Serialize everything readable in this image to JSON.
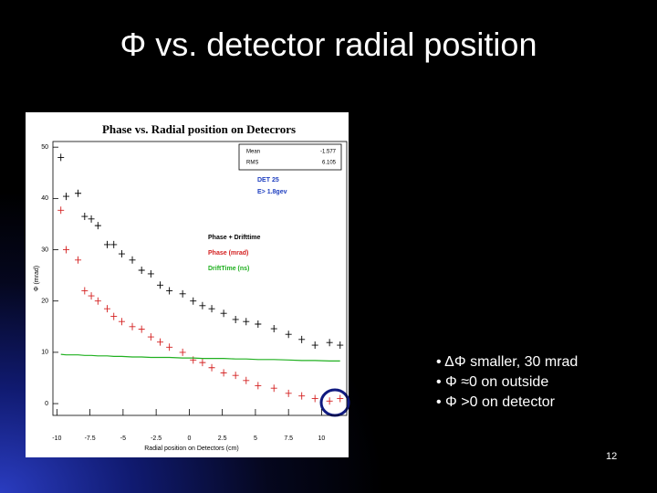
{
  "slide": {
    "title": "Φ vs. detector radial position",
    "bullets": [
      "• ΔΦ smaller, 30 mrad",
      "• Φ ≈0 on outside",
      "• Φ >0 on detector"
    ],
    "page_number": "12"
  },
  "chart_data": {
    "type": "scatter",
    "title": "Phase vs. Radial position on Detecrors",
    "x_label": "Radial position on Detectors (cm)",
    "y_label": "Φ (mrad)",
    "stats": {
      "labels": [
        "Mean",
        "RMS"
      ],
      "values": [
        -1.577,
        6.105
      ]
    },
    "annotations": [
      "DET 25",
      "E> 1.8gev"
    ],
    "xlim": [
      -10.3,
      11.9
    ],
    "ylim": [
      -2.3,
      51.1
    ],
    "xticks": [
      -10,
      -7.5,
      -5,
      -2.5,
      0,
      2.5,
      5,
      7.5,
      10
    ],
    "yticks": [
      0,
      10,
      20,
      30,
      40,
      50
    ],
    "series": [
      {
        "name": "Phase + Drifttime",
        "color": "#000000",
        "style": "cross",
        "x": [
          -9.7,
          -9.3,
          -8.4,
          -7.9,
          -7.4,
          -6.9,
          -6.2,
          -5.7,
          -5.1,
          -4.3,
          -3.6,
          -2.9,
          -2.2,
          -1.5,
          -0.5,
          0.3,
          1.0,
          1.7,
          2.6,
          3.5,
          4.3,
          5.2,
          6.4,
          7.5,
          8.5,
          9.5,
          10.6,
          11.4
        ],
        "values": [
          48,
          40.4,
          41,
          36.5,
          36,
          34.7,
          31,
          31,
          29.2,
          28,
          26,
          25.3,
          23.1,
          22,
          21.4,
          20,
          19.1,
          18.5,
          17.6,
          16.4,
          16,
          15.5,
          14.6,
          13.5,
          12.5,
          11.4,
          11.9,
          11.4
        ]
      },
      {
        "name": "Phase (mrad)",
        "color": "#d42020",
        "style": "cross",
        "x": [
          -9.7,
          -9.3,
          -8.4,
          -7.9,
          -7.4,
          -6.9,
          -6.2,
          -5.7,
          -5.1,
          -4.3,
          -3.6,
          -2.9,
          -2.2,
          -1.5,
          -0.5,
          0.3,
          1.0,
          1.7,
          2.6,
          3.5,
          4.3,
          5.2,
          6.4,
          7.5,
          8.5,
          9.5,
          10.6,
          11.4
        ],
        "values": [
          37.7,
          30,
          28,
          22,
          21,
          20,
          18.5,
          17,
          16,
          15,
          14.5,
          13,
          12,
          11,
          10,
          8.5,
          8,
          7,
          6,
          5.5,
          4.5,
          3.5,
          3,
          2,
          1.5,
          1,
          0.5,
          1
        ]
      },
      {
        "name": "DriftTime (ns)",
        "color": "#20b020",
        "style": "line",
        "x": [
          -9.7,
          -9.3,
          -8.4,
          -7.9,
          -7.4,
          -6.9,
          -6.2,
          -5.7,
          -5.1,
          -4.3,
          -3.6,
          -2.9,
          -2.2,
          -1.5,
          -0.5,
          0.3,
          1.0,
          1.7,
          2.6,
          3.5,
          4.3,
          5.2,
          6.4,
          7.5,
          8.5,
          9.5,
          10.6,
          11.4
        ],
        "values": [
          9.6,
          9.5,
          9.5,
          9.4,
          9.4,
          9.3,
          9.3,
          9.2,
          9.2,
          9.1,
          9.1,
          9.0,
          9.0,
          9.0,
          8.9,
          8.9,
          8.8,
          8.8,
          8.8,
          8.7,
          8.7,
          8.6,
          8.6,
          8.5,
          8.4,
          8.4,
          8.3,
          8.3
        ]
      }
    ]
  }
}
